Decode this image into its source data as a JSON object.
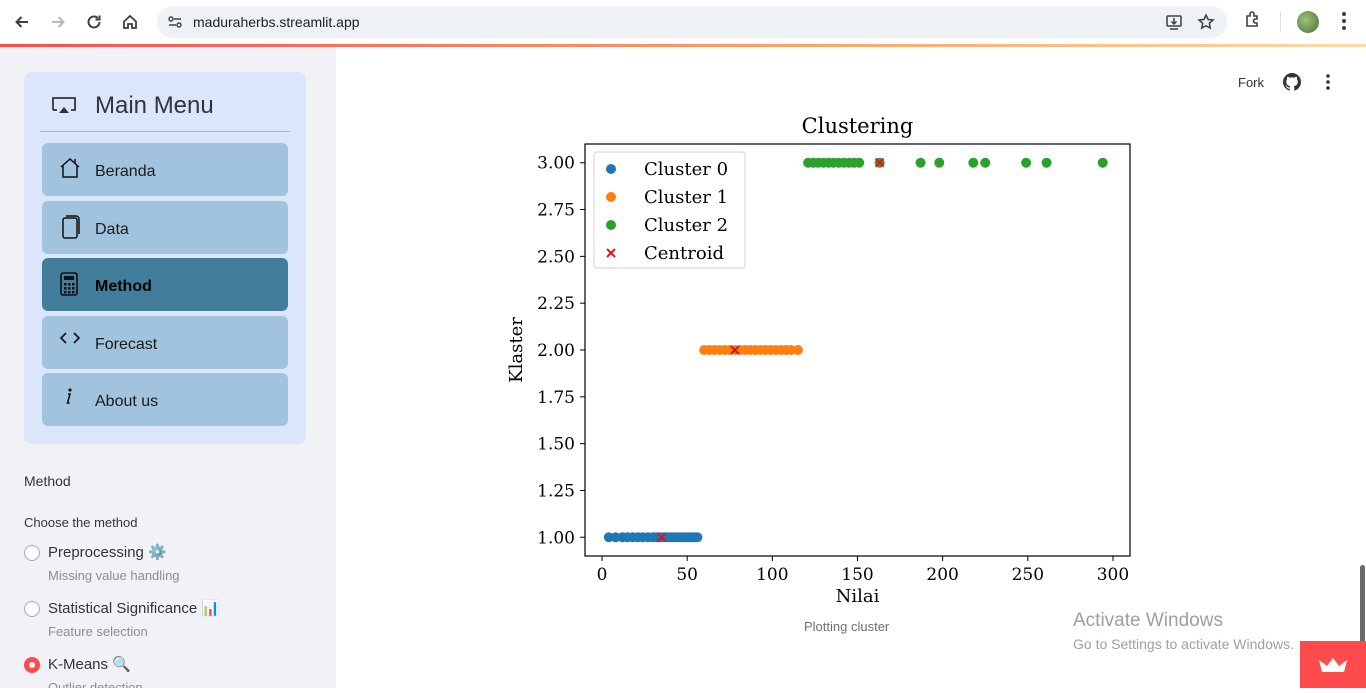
{
  "browser": {
    "url": "maduraherbs.streamlit.app"
  },
  "menu": {
    "title": "Main Menu",
    "items": [
      {
        "label": "Beranda",
        "icon": "house-icon",
        "active": false
      },
      {
        "label": "Data",
        "icon": "files-icon",
        "active": false
      },
      {
        "label": "Method",
        "icon": "calculator-icon",
        "active": true
      },
      {
        "label": "Forecast",
        "icon": "code-icon",
        "active": false
      },
      {
        "label": "About us",
        "icon": "info-icon",
        "active": false
      }
    ]
  },
  "method_section": {
    "label": "Method",
    "choose_label": "Choose the method",
    "options": [
      {
        "label": "Preprocessing ⚙️",
        "sub": "Missing value handling",
        "selected": false
      },
      {
        "label": "Statistical Significance 📊",
        "sub": "Feature selection",
        "selected": false
      },
      {
        "label": "K-Means 🔍",
        "sub": "Outlier detection",
        "selected": true
      }
    ]
  },
  "header": {
    "fork_label": "Fork"
  },
  "chart_caption": "Plotting cluster",
  "watermark": {
    "title": "Activate Windows",
    "subtitle": "Go to Settings to activate Windows."
  },
  "colors": {
    "cluster0": "#1f77b4",
    "cluster1": "#ff7f0e",
    "cluster2": "#2ca02c",
    "centroid": "#e8101e",
    "active_menu": "#427e9c",
    "accent": "#ff4b4b"
  },
  "chart_data": {
    "type": "scatter",
    "title": "Clustering",
    "xlabel": "Nilai",
    "ylabel": "Klaster",
    "xlim": [
      -10,
      310
    ],
    "ylim": [
      0.9,
      3.1
    ],
    "xticks": [
      "0",
      "50",
      "100",
      "150",
      "200",
      "250",
      "300"
    ],
    "xtick_values": [
      0,
      50,
      100,
      150,
      200,
      250,
      300
    ],
    "yticks": [
      "1.00",
      "1.25",
      "1.50",
      "1.75",
      "2.00",
      "2.25",
      "2.50",
      "2.75",
      "3.00"
    ],
    "ytick_values": [
      1.0,
      1.25,
      1.5,
      1.75,
      2.0,
      2.25,
      2.5,
      2.75,
      3.0
    ],
    "legend_position": "top-left",
    "series": [
      {
        "name": "Cluster 0",
        "marker": "o",
        "color": "#1f77b4",
        "y": 1,
        "x": [
          4,
          8,
          12,
          15,
          18,
          21,
          24,
          27,
          30,
          32,
          34,
          36,
          38,
          40,
          42,
          44,
          46,
          48,
          50,
          52,
          54,
          56
        ]
      },
      {
        "name": "Cluster 1",
        "marker": "o",
        "color": "#ff7f0e",
        "y": 2,
        "x": [
          60,
          63,
          66,
          69,
          72,
          75,
          78,
          81,
          84,
          87,
          90,
          93,
          96,
          99,
          102,
          105,
          108,
          111,
          115
        ]
      },
      {
        "name": "Cluster 2",
        "marker": "o",
        "color": "#2ca02c",
        "y": 3,
        "x": [
          121,
          124,
          127,
          130,
          133,
          136,
          139,
          142,
          145,
          148,
          151,
          163,
          187,
          198,
          218,
          225,
          249,
          261,
          294
        ]
      },
      {
        "name": "Centroid",
        "marker": "x",
        "color": "#e8101e",
        "points": [
          {
            "x": 35,
            "y": 1
          },
          {
            "x": 78,
            "y": 2
          },
          {
            "x": 163,
            "y": 3
          }
        ]
      }
    ]
  }
}
